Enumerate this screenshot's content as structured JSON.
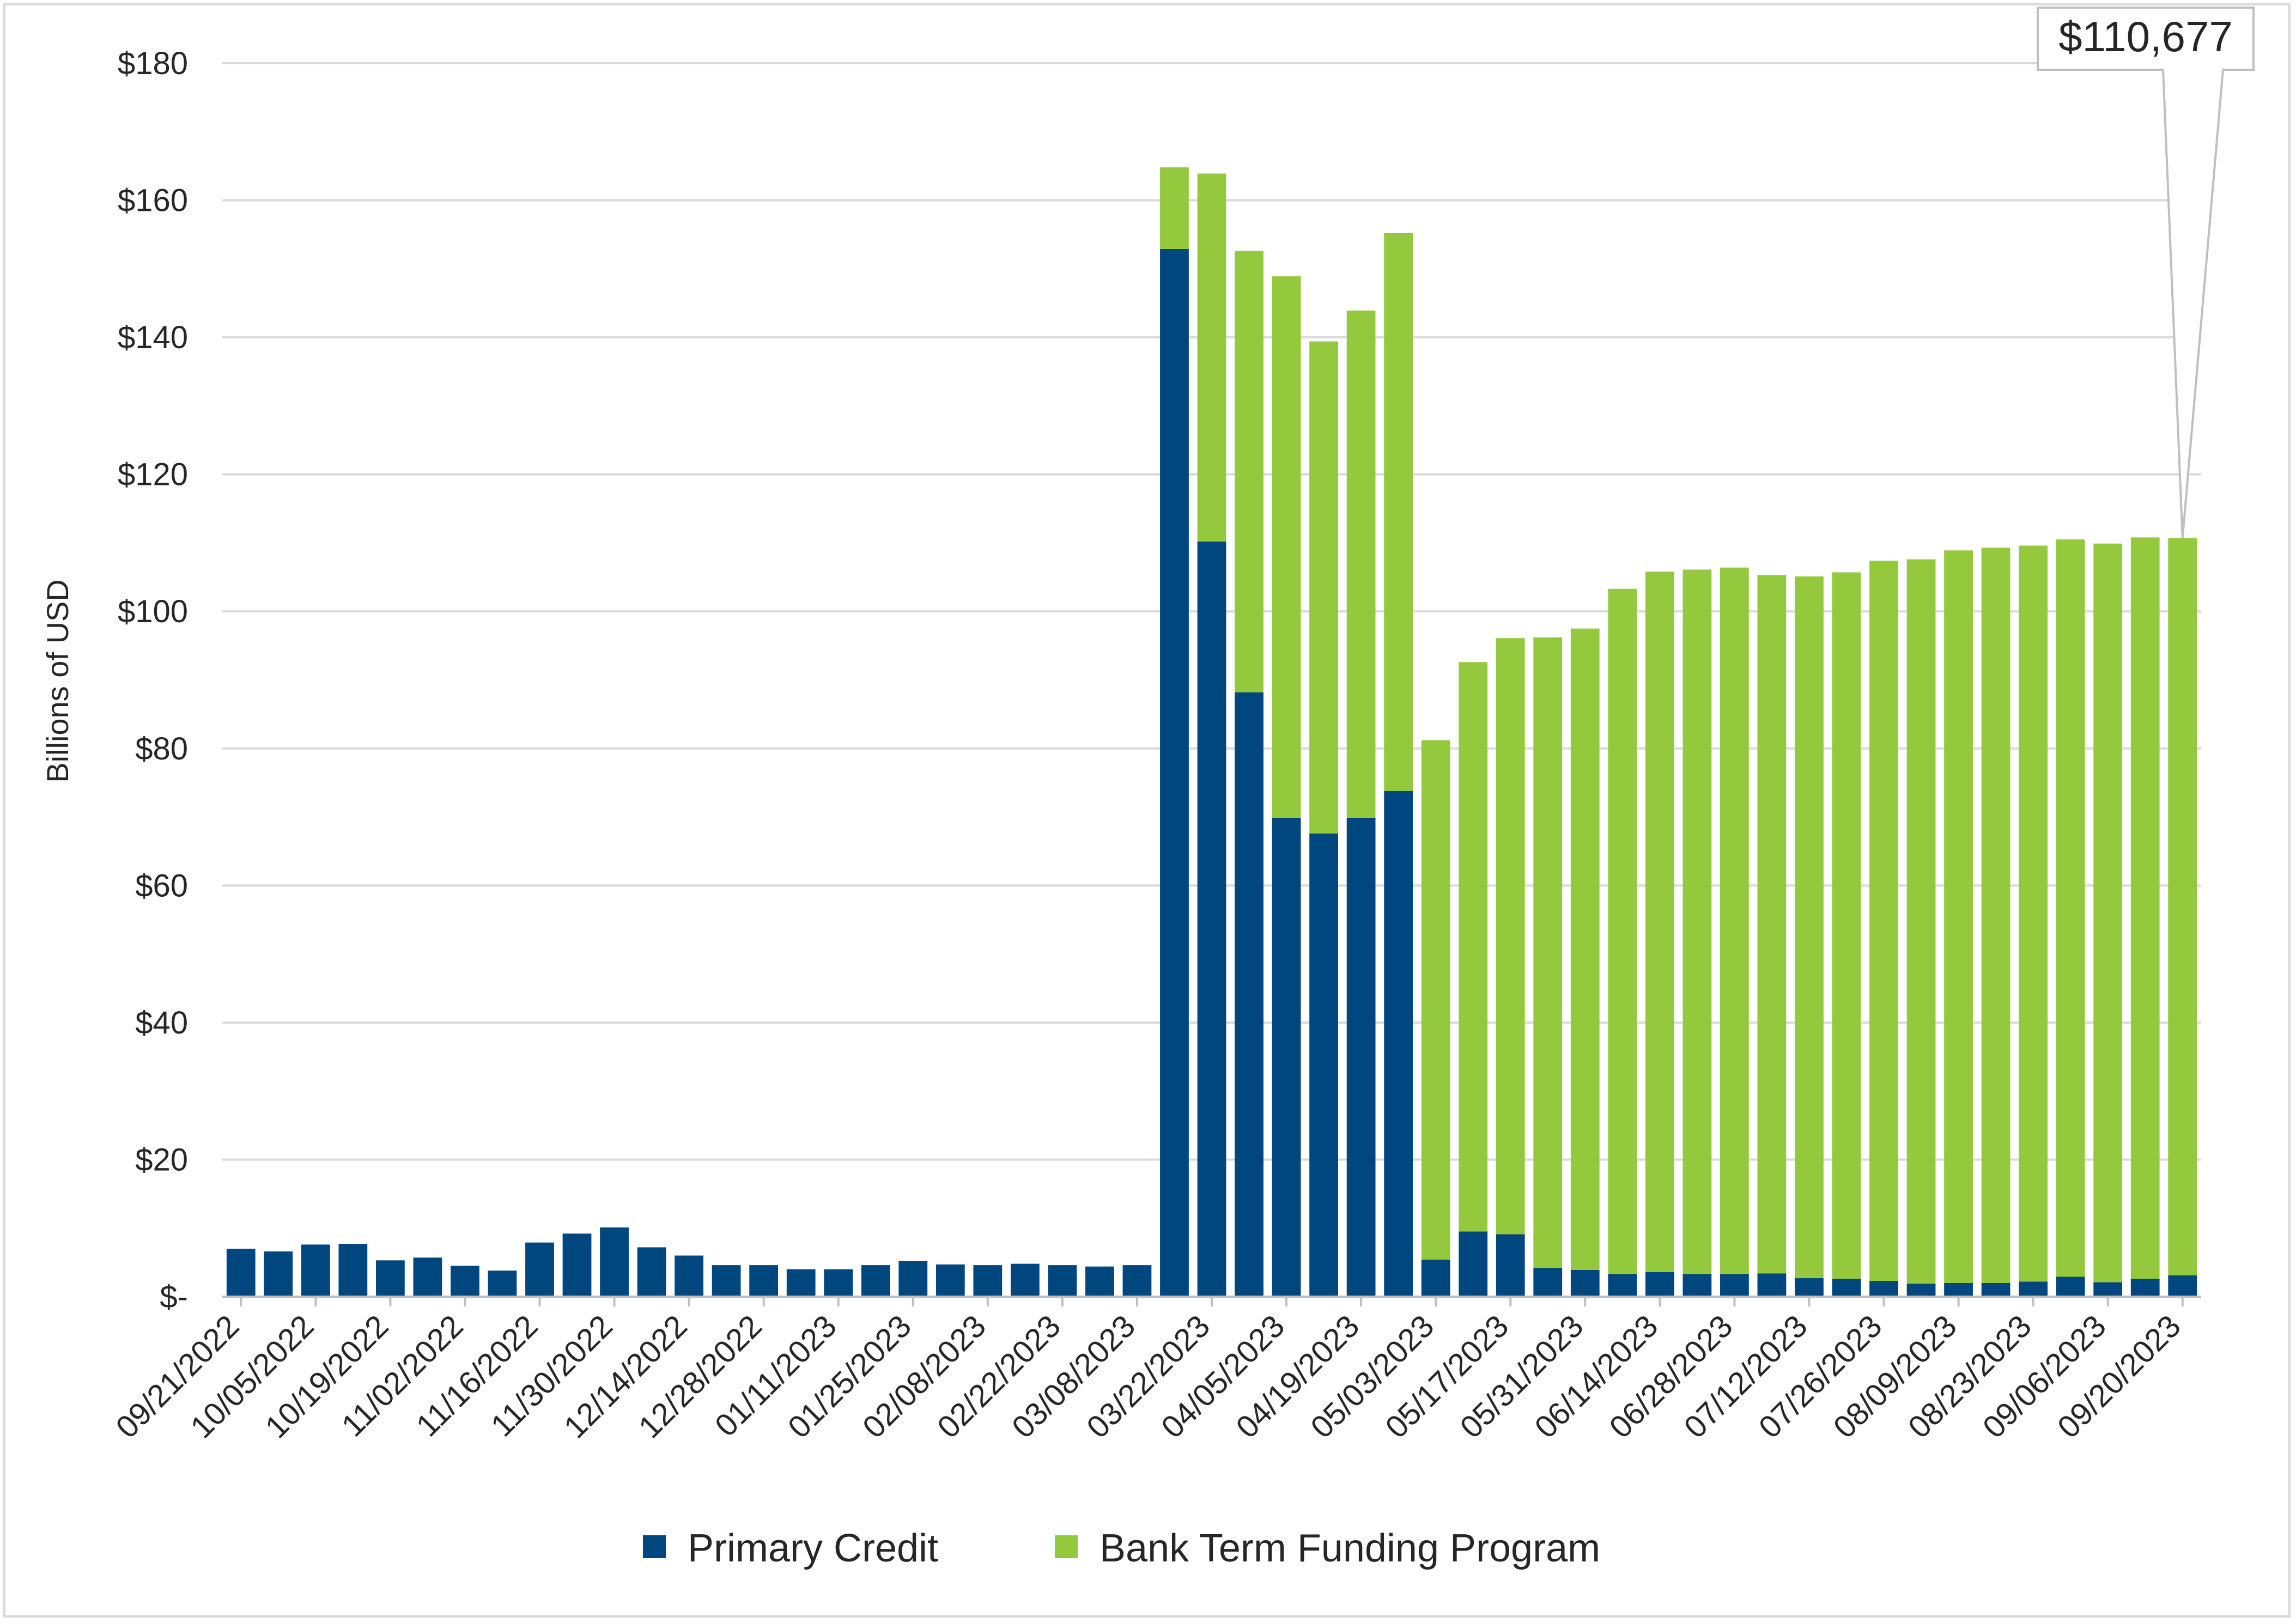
{
  "colors": {
    "primary_credit": "#00467F",
    "btfp": "#95C93D",
    "grid": "#d9d9d9",
    "axis": "#bfbfbf",
    "text": "#262626"
  },
  "chart_data": {
    "type": "bar",
    "stacked": true,
    "title": "",
    "xlabel": "",
    "ylabel": "Billions of USD",
    "ylim": [
      0,
      180
    ],
    "y_ticks": [
      0,
      20,
      40,
      60,
      80,
      100,
      120,
      140,
      160,
      180
    ],
    "y_tick_labels": [
      "$-",
      "$20",
      "$40",
      "$60",
      "$80",
      "$100",
      "$120",
      "$140",
      "$160",
      "$180"
    ],
    "x_tick_labels": [
      "09/21/2022",
      "10/05/2022",
      "10/19/2022",
      "11/02/2022",
      "11/16/2022",
      "11/30/2022",
      "12/14/2022",
      "12/28/2022",
      "01/11/2023",
      "01/25/2023",
      "02/08/2023",
      "02/22/2023",
      "03/08/2023",
      "03/22/2023",
      "04/05/2023",
      "04/19/2023",
      "05/03/2023",
      "05/17/2023",
      "05/31/2023",
      "06/14/2023",
      "06/28/2023",
      "07/12/2023",
      "07/26/2023",
      "08/09/2023",
      "08/23/2023",
      "09/06/2023",
      "09/20/2023"
    ],
    "categories": [
      "09/21/2022",
      "09/28/2022",
      "10/05/2022",
      "10/12/2022",
      "10/19/2022",
      "10/26/2022",
      "11/02/2022",
      "11/09/2022",
      "11/16/2022",
      "11/23/2022",
      "11/30/2022",
      "12/07/2022",
      "12/14/2022",
      "12/21/2022",
      "12/28/2022",
      "01/04/2023",
      "01/11/2023",
      "01/18/2023",
      "01/25/2023",
      "02/01/2023",
      "02/08/2023",
      "02/15/2023",
      "02/22/2023",
      "03/01/2023",
      "03/08/2023",
      "03/15/2023",
      "03/22/2023",
      "03/29/2023",
      "04/05/2023",
      "04/12/2023",
      "04/19/2023",
      "04/26/2023",
      "05/03/2023",
      "05/10/2023",
      "05/17/2023",
      "05/24/2023",
      "05/31/2023",
      "06/07/2023",
      "06/14/2023",
      "06/21/2023",
      "06/28/2023",
      "07/05/2023",
      "07/12/2023",
      "07/19/2023",
      "07/26/2023",
      "08/02/2023",
      "08/09/2023",
      "08/16/2023",
      "08/23/2023",
      "08/30/2023",
      "09/06/2023",
      "09/13/2023",
      "09/20/2023"
    ],
    "series": [
      {
        "name": "Primary Credit",
        "values": [
          7.0,
          6.6,
          7.6,
          7.7,
          5.3,
          5.7,
          4.5,
          3.8,
          7.9,
          9.2,
          10.1,
          7.2,
          6.0,
          4.6,
          4.6,
          4.0,
          4.0,
          4.6,
          5.2,
          4.7,
          4.6,
          4.8,
          4.6,
          4.4,
          4.6,
          152.9,
          110.2,
          88.2,
          69.9,
          67.6,
          69.9,
          73.8,
          5.4,
          9.5,
          9.1,
          4.2,
          3.9,
          3.3,
          3.6,
          3.3,
          3.3,
          3.4,
          2.7,
          2.6,
          2.3,
          1.9,
          2.0,
          2.0,
          2.2,
          2.9,
          2.1,
          2.6,
          3.1
        ]
      },
      {
        "name": "Bank Term Funding Program",
        "values": [
          0,
          0,
          0,
          0,
          0,
          0,
          0,
          0,
          0,
          0,
          0,
          0,
          0,
          0,
          0,
          0,
          0,
          0,
          0,
          0,
          0,
          0,
          0,
          0,
          0,
          11.9,
          53.7,
          64.4,
          79.0,
          71.8,
          74.0,
          81.4,
          75.8,
          83.1,
          87.0,
          92.0,
          93.6,
          100.0,
          102.2,
          102.8,
          103.1,
          101.9,
          102.4,
          103.1,
          105.1,
          105.7,
          106.9,
          107.3,
          107.4,
          107.6,
          107.8,
          108.2,
          107.6
        ]
      }
    ],
    "annotations": [
      {
        "label": "$110,677",
        "category": "09/20/2023"
      }
    ],
    "legend": {
      "position": "bottom",
      "entries": [
        "Primary Credit",
        "Bank Term Funding Program"
      ]
    }
  }
}
